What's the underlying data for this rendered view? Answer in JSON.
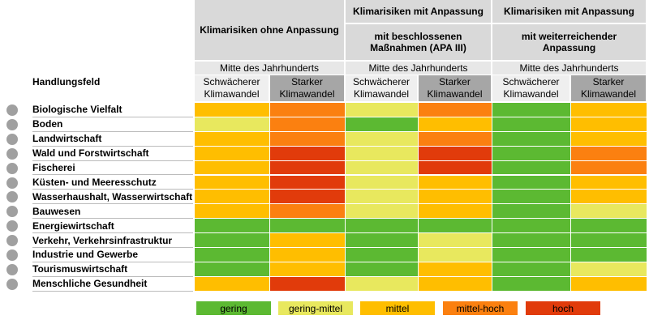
{
  "header": {
    "row_label": "Handlungsfeld",
    "groups": [
      {
        "title": "Klimarisiken ohne Anpassung",
        "period": "Mitte des Jahrhunderts"
      },
      {
        "title": "Klimarisiken mit Anpassung",
        "subtitle": "mit beschlossenen Maßnahmen (APA III)",
        "period": "Mitte des Jahrhunderts"
      },
      {
        "title": "Klimarisiken mit Anpassung",
        "subtitle": "mit weiterreichender Anpassung",
        "period": "Mitte des Jahrhunderts"
      }
    ],
    "scenarios": [
      "Schwächerer Klimawandel",
      "Starker Klimawandel"
    ]
  },
  "legend": [
    {
      "label": "gering",
      "color": "#5cb932"
    },
    {
      "label": "gering-mittel",
      "color": "#e8e85e"
    },
    {
      "label": "mittel",
      "color": "#ffbe00"
    },
    {
      "label": "mittel-hoch",
      "color": "#fb8010"
    },
    {
      "label": "hoch",
      "color": "#e13b0b"
    }
  ],
  "rows": [
    {
      "label": "Biologische Vielfalt",
      "levels": [
        2,
        3,
        1,
        3,
        0,
        2
      ]
    },
    {
      "label": "Boden",
      "levels": [
        1,
        3,
        0,
        2,
        0,
        2
      ]
    },
    {
      "label": "Landwirtschaft",
      "levels": [
        2,
        3,
        1,
        3,
        0,
        2
      ]
    },
    {
      "label": "Wald und Forstwirtschaft",
      "levels": [
        2,
        4,
        1,
        4,
        0,
        3
      ]
    },
    {
      "label": "Fischerei",
      "levels": [
        2,
        4,
        1,
        4,
        0,
        3
      ]
    },
    {
      "label": "Küsten- und Meeresschutz",
      "levels": [
        2,
        4,
        1,
        2,
        0,
        2
      ]
    },
    {
      "label": "Wasserhaushalt, Wasserwirtschaft",
      "levels": [
        2,
        4,
        1,
        2,
        0,
        2
      ]
    },
    {
      "label": "Bauwesen",
      "levels": [
        2,
        3,
        1,
        2,
        0,
        1
      ]
    },
    {
      "label": "Energiewirtschaft",
      "levels": [
        0,
        0,
        0,
        0,
        0,
        0
      ]
    },
    {
      "label": "Verkehr, Verkehrsinfrastruktur",
      "levels": [
        0,
        2,
        0,
        1,
        0,
        0
      ]
    },
    {
      "label": "Industrie und Gewerbe",
      "levels": [
        0,
        2,
        0,
        1,
        0,
        0
      ]
    },
    {
      "label": "Tourismuswirtschaft",
      "levels": [
        0,
        2,
        0,
        2,
        0,
        1
      ]
    },
    {
      "label": "Menschliche Gesundheit",
      "levels": [
        2,
        4,
        1,
        2,
        0,
        2
      ]
    }
  ]
}
